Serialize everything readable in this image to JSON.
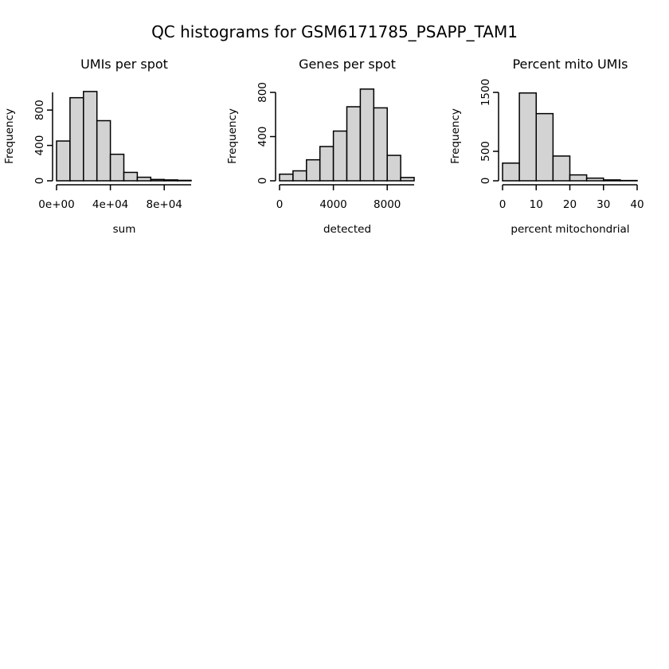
{
  "title": "QC histograms for GSM6171785_PSAPP_TAM1",
  "colors": {
    "bar_fill": "#d3d3d3",
    "bar_stroke": "#000000",
    "axis": "#000000"
  },
  "chart_data": [
    {
      "type": "bar",
      "title": "UMIs per spot",
      "xlabel": "sum",
      "ylabel": "Frequency",
      "bin_edges": [
        0,
        10000,
        20000,
        30000,
        40000,
        50000,
        60000,
        70000,
        80000,
        90000,
        100000
      ],
      "values": [
        450,
        940,
        1010,
        680,
        300,
        95,
        40,
        15,
        10,
        5
      ],
      "xlim": [
        0,
        100000
      ],
      "ylim": [
        0,
        1000
      ],
      "x_ticks": [
        0,
        40000,
        80000
      ],
      "x_tick_labels": [
        "0e+00",
        "4e+04",
        "8e+04"
      ],
      "y_ticks": [
        0,
        400,
        800
      ],
      "y_tick_labels": [
        "0",
        "400",
        "800"
      ],
      "y_axis_extent": [
        0,
        1000
      ]
    },
    {
      "type": "bar",
      "title": "Genes per spot",
      "xlabel": "detected",
      "ylabel": "Frequency",
      "bin_edges": [
        0,
        1000,
        2000,
        3000,
        4000,
        5000,
        6000,
        7000,
        8000,
        9000,
        10000
      ],
      "values": [
        60,
        90,
        190,
        310,
        450,
        670,
        830,
        660,
        230,
        30
      ],
      "xlim": [
        0,
        10000
      ],
      "ylim": [
        0,
        800
      ],
      "x_ticks": [
        0,
        4000,
        8000
      ],
      "x_tick_labels": [
        "0",
        "4000",
        "8000"
      ],
      "y_ticks": [
        0,
        400,
        800
      ],
      "y_tick_labels": [
        "0",
        "400",
        "800"
      ],
      "y_axis_extent": [
        0,
        800
      ]
    },
    {
      "type": "bar",
      "title": "Percent mito UMIs",
      "xlabel": "percent mitochondrial",
      "ylabel": "Frequency",
      "bin_edges": [
        0,
        5,
        10,
        15,
        20,
        25,
        30,
        35,
        40
      ],
      "values": [
        300,
        1490,
        1140,
        420,
        100,
        45,
        15,
        5
      ],
      "xlim": [
        0,
        40
      ],
      "ylim": [
        0,
        1500
      ],
      "x_ticks": [
        0,
        10,
        20,
        30,
        40
      ],
      "x_tick_labels": [
        "0",
        "10",
        "20",
        "30",
        "40"
      ],
      "y_ticks": [
        0,
        500,
        1500
      ],
      "y_tick_labels": [
        "0",
        "500",
        "1500"
      ],
      "y_axis_extent": [
        0,
        1500
      ]
    }
  ]
}
